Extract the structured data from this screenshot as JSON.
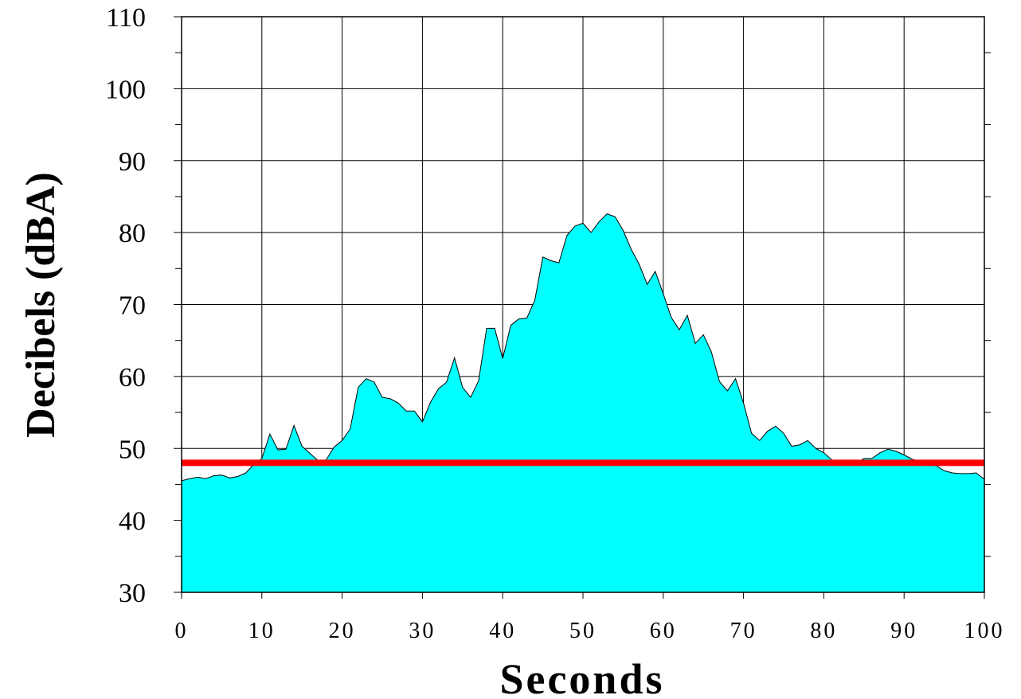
{
  "chart_data": {
    "type": "area",
    "xlabel": "Seconds",
    "ylabel": "Decibels (dBA)",
    "xlim": [
      0,
      100
    ],
    "ylim": [
      30,
      110
    ],
    "xticks": [
      0,
      10,
      20,
      30,
      40,
      50,
      60,
      70,
      80,
      90,
      100
    ],
    "yticks": [
      30,
      40,
      50,
      60,
      70,
      80,
      90,
      100,
      110
    ],
    "grid": true,
    "fill_color": "#00FFFF",
    "outline_color": "#000000",
    "threshold": {
      "value": 48,
      "color": "#FF0000"
    },
    "x": [
      0,
      1,
      2,
      3,
      4,
      5,
      6,
      7,
      8,
      9,
      10,
      11,
      12,
      13,
      14,
      15,
      16,
      17,
      18,
      19,
      20,
      21,
      22,
      23,
      24,
      25,
      26,
      27,
      28,
      29,
      30,
      31,
      32,
      33,
      34,
      35,
      36,
      37,
      38,
      39,
      40,
      41,
      42,
      43,
      44,
      45,
      46,
      47,
      48,
      49,
      50,
      51,
      52,
      53,
      54,
      55,
      56,
      57,
      58,
      59,
      60,
      61,
      62,
      63,
      64,
      65,
      66,
      67,
      68,
      69,
      70,
      71,
      72,
      73,
      74,
      75,
      76,
      77,
      78,
      79,
      80,
      81,
      82,
      83,
      84,
      85,
      86,
      87,
      88,
      89,
      90,
      91,
      92,
      93,
      94,
      95,
      96,
      97,
      98,
      99,
      100
    ],
    "values": [
      45.5,
      45.8,
      46.0,
      45.8,
      46.2,
      46.3,
      45.9,
      46.1,
      46.6,
      47.8,
      48.6,
      52.0,
      49.8,
      49.9,
      53.2,
      50.3,
      49.3,
      48.3,
      48.4,
      50.2,
      51.1,
      52.7,
      58.5,
      59.7,
      59.2,
      57.1,
      56.9,
      56.3,
      55.2,
      55.2,
      53.7,
      56.4,
      58.3,
      59.2,
      62.6,
      58.5,
      57.1,
      59.4,
      66.7,
      66.7,
      62.5,
      67.1,
      68.0,
      68.1,
      70.6,
      76.6,
      76.1,
      75.8,
      79.6,
      80.9,
      81.3,
      80.0,
      81.5,
      82.6,
      82.2,
      80.3,
      77.7,
      75.6,
      72.8,
      74.6,
      71.5,
      68.2,
      66.5,
      68.5,
      64.6,
      65.8,
      63.4,
      59.3,
      58.0,
      59.7,
      56.3,
      52.1,
      51.1,
      52.4,
      53.1,
      52.1,
      50.3,
      50.5,
      51.1,
      50.0,
      49.4,
      48.4,
      48.2,
      48.0,
      47.9,
      48.6,
      48.6,
      49.4,
      49.9,
      49.6,
      49.1,
      48.5,
      48.2,
      47.8,
      47.6,
      46.9,
      46.6,
      46.5,
      46.5,
      46.6,
      45.7
    ]
  }
}
